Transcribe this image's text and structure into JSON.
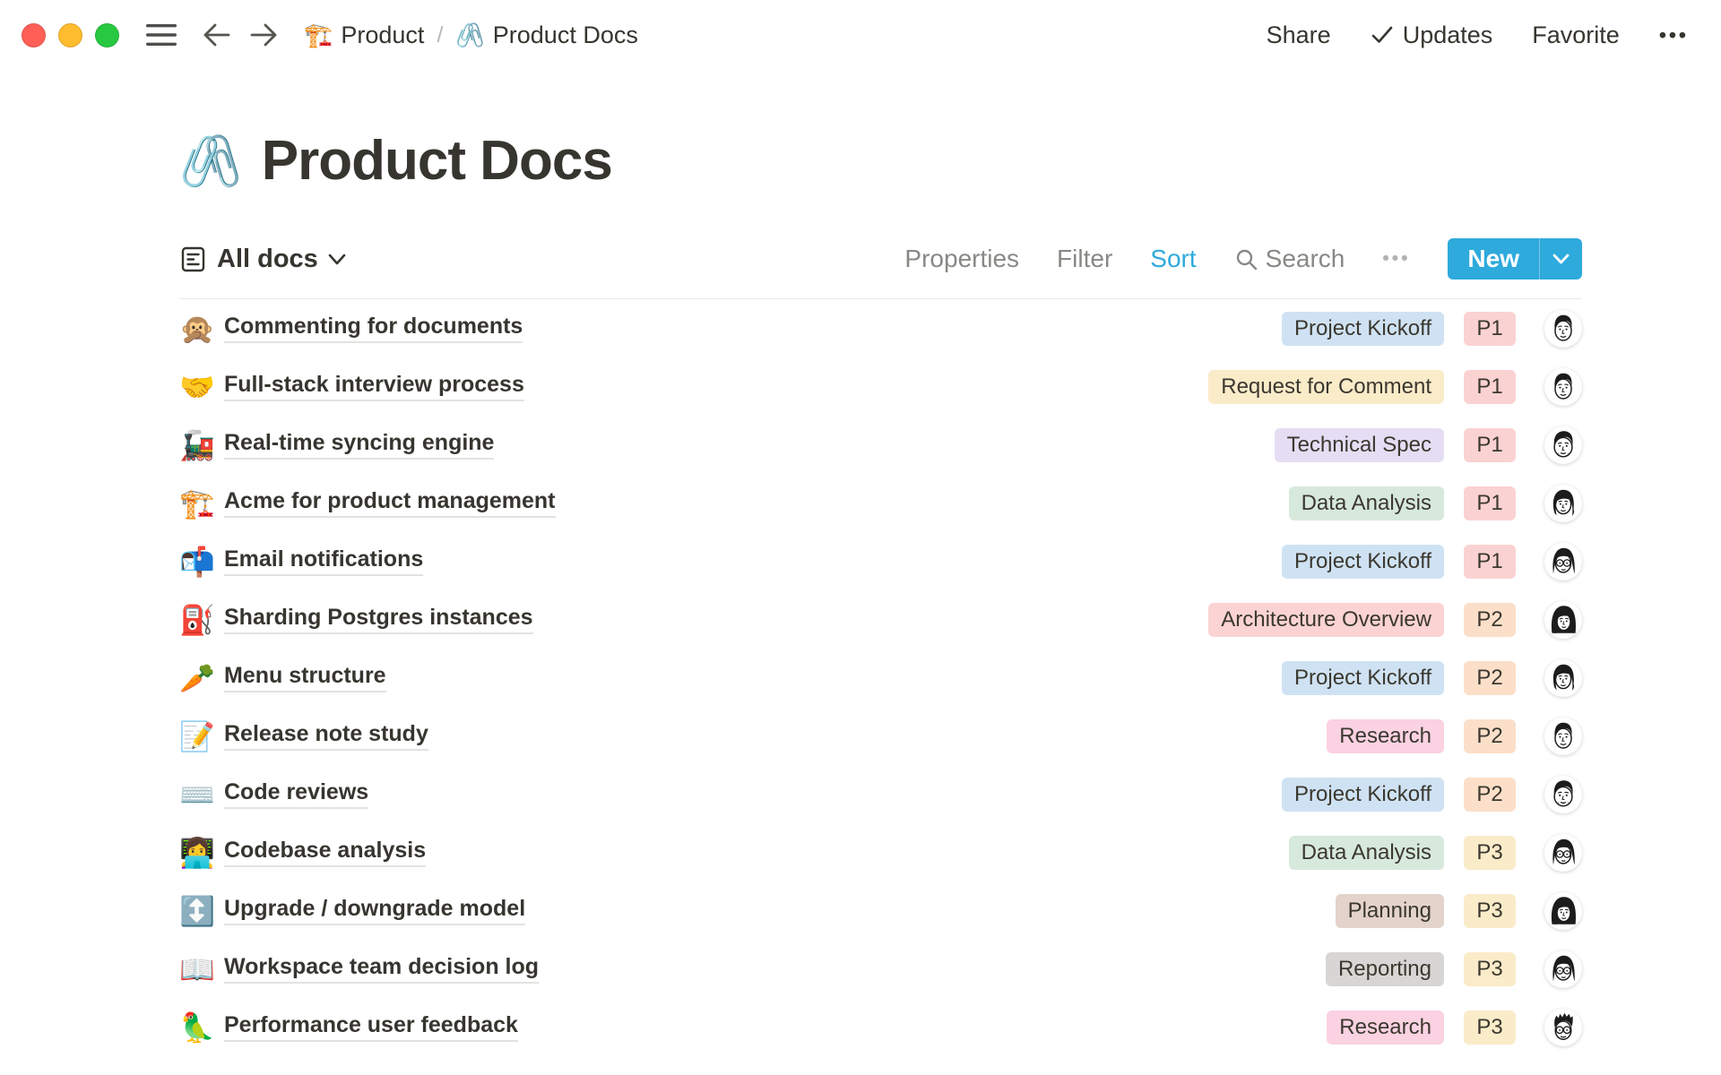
{
  "topbar": {
    "breadcrumb": [
      {
        "emoji": "🏗️",
        "label": "Product"
      },
      {
        "emoji": "🖇️",
        "label": "Product Docs"
      }
    ],
    "separator": "/",
    "actions": {
      "share": "Share",
      "updates": "Updates",
      "favorite": "Favorite",
      "more": "•••"
    }
  },
  "page": {
    "emoji": "🖇️",
    "title": "Product Docs"
  },
  "toolbar": {
    "view_label": "All docs",
    "properties": "Properties",
    "filter": "Filter",
    "sort": "Sort",
    "search": "Search",
    "more": "•••",
    "new_label": "New"
  },
  "colors": {
    "accent": "#2eaadc",
    "tag": {
      "blue": "#cfe2f3",
      "yellow": "#faebc9",
      "purple": "#e5ddf3",
      "green": "#d7e8dc",
      "red": "#fbd3d3",
      "pink": "#fad2e2",
      "brown": "#e3d3cb",
      "gray": "#d7d6d4"
    },
    "priority": {
      "P1": "#fbd2d2",
      "P2": "#fbdfc9",
      "P3": "#faebc9"
    }
  },
  "rows": [
    {
      "emoji": "🙊",
      "title": "Commenting for documents",
      "tag": "Project Kickoff",
      "tag_color": "blue",
      "priority": "P1",
      "avatar": "man-dark-hair"
    },
    {
      "emoji": "🤝",
      "title": "Full-stack interview process",
      "tag": "Request for Comment",
      "tag_color": "yellow",
      "priority": "P1",
      "avatar": "man-dark-hair"
    },
    {
      "emoji": "🚂",
      "title": "Real-time syncing engine",
      "tag": "Technical Spec",
      "tag_color": "purple",
      "priority": "P1",
      "avatar": "man-stubble"
    },
    {
      "emoji": "🏗️",
      "title": "Acme for product management",
      "tag": "Data Analysis",
      "tag_color": "green",
      "priority": "P1",
      "avatar": "woman-wavy"
    },
    {
      "emoji": "📬",
      "title": "Email notifications",
      "tag": "Project Kickoff",
      "tag_color": "blue",
      "priority": "P1",
      "avatar": "person-glasses-long-hair"
    },
    {
      "emoji": "⛽",
      "title": "Sharding Postgres instances",
      "tag": "Architecture Overview",
      "tag_color": "red",
      "priority": "P2",
      "avatar": "woman-dark-bob"
    },
    {
      "emoji": "🥕",
      "title": "Menu structure",
      "tag": "Project Kickoff",
      "tag_color": "blue",
      "priority": "P2",
      "avatar": "woman-wavy"
    },
    {
      "emoji": "📝",
      "title": "Release note study",
      "tag": "Research",
      "tag_color": "pink",
      "priority": "P2",
      "avatar": "man-dark-hair"
    },
    {
      "emoji": "⌨️",
      "title": "Code reviews",
      "tag": "Project Kickoff",
      "tag_color": "blue",
      "priority": "P2",
      "avatar": "man-stubble"
    },
    {
      "emoji": "👩‍💻",
      "title": "Codebase analysis",
      "tag": "Data Analysis",
      "tag_color": "green",
      "priority": "P3",
      "avatar": "person-glasses-long-hair"
    },
    {
      "emoji": "↕️",
      "title": "Upgrade / downgrade model",
      "tag": "Planning",
      "tag_color": "brown",
      "priority": "P3",
      "avatar": "woman-dark-bob"
    },
    {
      "emoji": "📖",
      "title": "Workspace team decision log",
      "tag": "Reporting",
      "tag_color": "gray",
      "priority": "P3",
      "avatar": "person-glasses-long-hair"
    },
    {
      "emoji": "🦜",
      "title": "Performance user feedback",
      "tag": "Research",
      "tag_color": "pink",
      "priority": "P3",
      "avatar": "man-glasses-spiky"
    }
  ]
}
